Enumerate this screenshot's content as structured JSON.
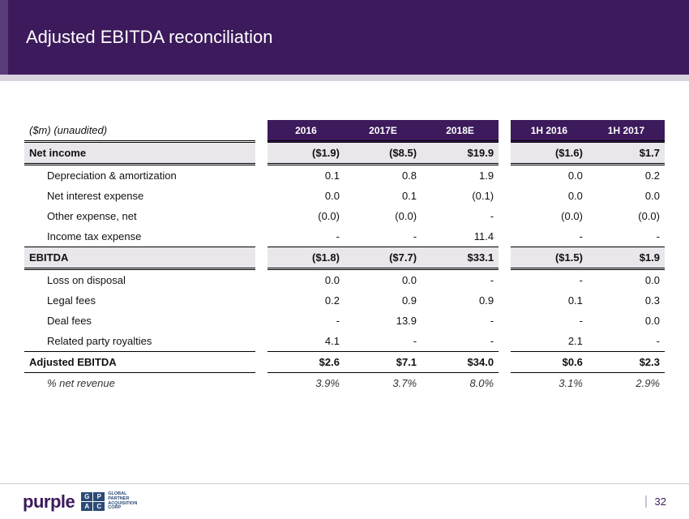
{
  "title": "Adjusted EBITDA reconciliation",
  "caption": "($m) (unaudited)",
  "columns": [
    "2016",
    "2017E",
    "2018E",
    "1H 2016",
    "1H 2017"
  ],
  "rows": {
    "net_income": {
      "label": "Net income",
      "v": [
        "($1.9)",
        "($8.5)",
        "$19.9",
        "($1.6)",
        "$1.7"
      ]
    },
    "dep_amort": {
      "label": "Depreciation & amortization",
      "v": [
        "0.1",
        "0.8",
        "1.9",
        "0.0",
        "0.2"
      ]
    },
    "net_interest": {
      "label": "Net interest expense",
      "v": [
        "0.0",
        "0.1",
        "(0.1)",
        "0.0",
        "0.0"
      ]
    },
    "other_exp": {
      "label": "Other expense, net",
      "v": [
        "(0.0)",
        "(0.0)",
        "-",
        "(0.0)",
        "(0.0)"
      ]
    },
    "tax_exp": {
      "label": "Income tax expense",
      "v": [
        "-",
        "-",
        "11.4",
        "-",
        "-"
      ]
    },
    "ebitda": {
      "label": "EBITDA",
      "v": [
        "($1.8)",
        "($7.7)",
        "$33.1",
        "($1.5)",
        "$1.9"
      ]
    },
    "loss_disp": {
      "label": "Loss on disposal",
      "v": [
        "0.0",
        "0.0",
        "-",
        "-",
        "0.0"
      ]
    },
    "legal": {
      "label": "Legal fees",
      "v": [
        "0.2",
        "0.9",
        "0.9",
        "0.1",
        "0.3"
      ]
    },
    "deal": {
      "label": "Deal fees",
      "v": [
        "-",
        "13.9",
        "-",
        "-",
        "0.0"
      ]
    },
    "royalties": {
      "label": "Related party royalties",
      "v": [
        "4.1",
        "-",
        "-",
        "2.1",
        "-"
      ]
    },
    "adj_ebitda": {
      "label": "Adjusted EBITDA",
      "v": [
        "$2.6",
        "$7.1",
        "$34.0",
        "$0.6",
        "$2.3"
      ]
    },
    "pct_rev": {
      "label": "% net revenue",
      "v": [
        "3.9%",
        "3.7%",
        "8.0%",
        "3.1%",
        "2.9%"
      ]
    }
  },
  "colors": {
    "brand": "#3c1a5b",
    "accent": "#5a3c7b",
    "band": "#d8d2df",
    "shade": "#e9e6ec",
    "gpac": "#2b4a76"
  },
  "footer": {
    "logo_text": "purple",
    "gpac_letters": [
      "G",
      "P",
      "A",
      "C"
    ],
    "gpac_label_l1": "GLOBAL",
    "gpac_label_l2": "PARTNER",
    "gpac_label_l3": "ACQUISITION",
    "gpac_label_l4": "CORP",
    "page_number": "32"
  }
}
